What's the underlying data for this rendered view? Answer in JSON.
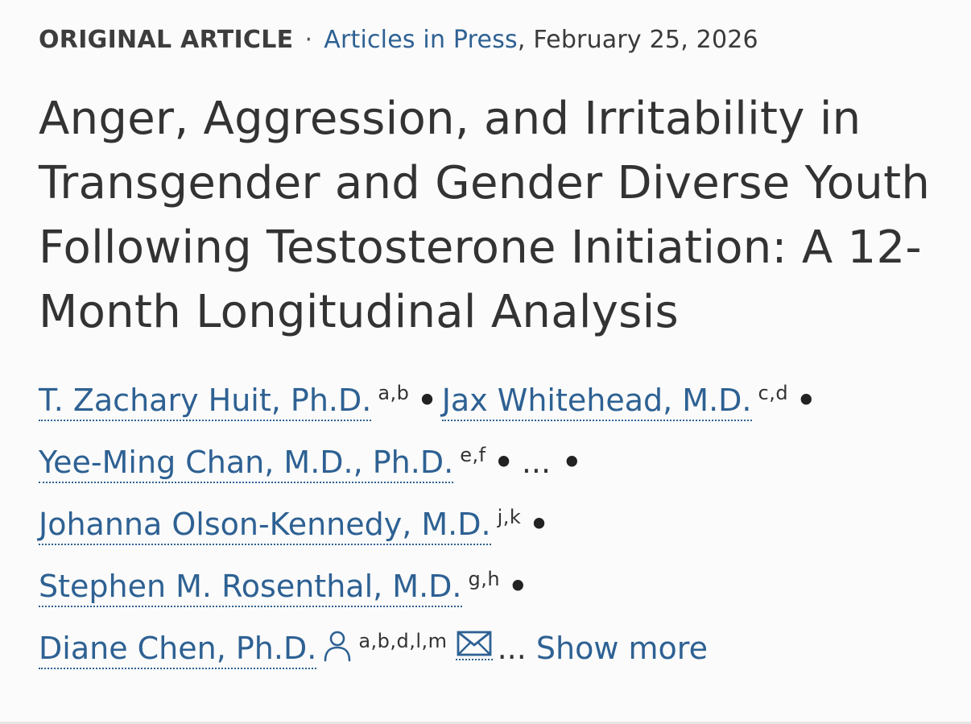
{
  "article": {
    "type": "ORIGINAL ARTICLE",
    "separator": "·",
    "section_link": "Articles in Press",
    "date": ", February 25, 2026",
    "title": "Anger, Aggression, and Irritability in Transgender and Gender Diverse Youth Following Testosterone Initiation: A 12-Month Longitudinal Analysis"
  },
  "authors": [
    {
      "name": "T. Zachary Huit, Ph.D.",
      "affiliations": "a,b"
    },
    {
      "name": "Jax Whitehead, M.D.",
      "affiliations": "c,d"
    },
    {
      "name": "Yee-Ming Chan, M.D., Ph.D.",
      "affiliations": "e,f"
    },
    {
      "name": "Johanna Olson-Kennedy, M.D.",
      "affiliations": "j,k"
    },
    {
      "name": "Stephen M. Rosenthal, M.D.",
      "affiliations": "g,h"
    },
    {
      "name": "Diane Chen, Ph.D.",
      "affiliations": "a,b,d,l,m"
    }
  ],
  "author_separator": "•",
  "truncation": "...",
  "show_more_label": "Show more",
  "icons": {
    "corresponding_author": "person-icon",
    "email": "envelope-icon"
  },
  "colors": {
    "link": "#2e6193",
    "text": "#333333",
    "background": "#fbfbfb"
  }
}
